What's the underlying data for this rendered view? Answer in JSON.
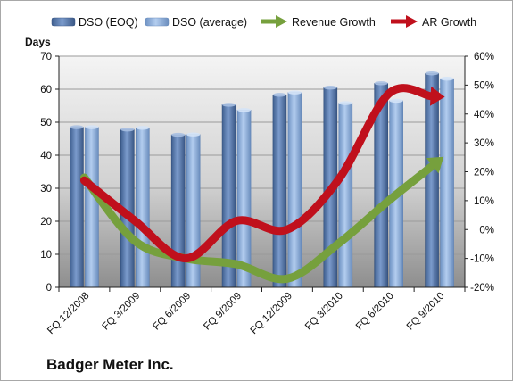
{
  "chart_data": {
    "type": "bar",
    "title": "Badger Meter Inc.",
    "categories": [
      "FQ 12/2008",
      "FQ 3/2009",
      "FQ 6/2009",
      "FQ 9/2009",
      "FQ 12/2009",
      "FQ 3/2010",
      "FQ 6/2010",
      "FQ 9/2010"
    ],
    "ylabel": "Days",
    "ylim": [
      0,
      70
    ],
    "yticks": [
      0,
      10,
      20,
      30,
      40,
      50,
      60,
      70
    ],
    "y2lim": [
      -20,
      60
    ],
    "y2ticks": [
      -20,
      -10,
      0,
      10,
      20,
      30,
      40,
      50,
      60
    ],
    "y2_unit": "%",
    "grid": true,
    "legend_position": "top",
    "series": [
      {
        "name": "DSO (EOQ)",
        "type": "bar",
        "axis": "left",
        "color": "#5a7baa",
        "values": [
          48.5,
          47.8,
          46.2,
          55.3,
          58.3,
          60.5,
          61.8,
          64.8
        ]
      },
      {
        "name": "DSO (average)",
        "type": "bar",
        "axis": "left",
        "color": "#8fb2df",
        "values": [
          48.5,
          48.3,
          46.3,
          53.7,
          59.0,
          55.8,
          56.5,
          63.2
        ]
      },
      {
        "name": "Revenue Growth",
        "type": "line",
        "axis": "right",
        "color": "#76a03d",
        "values": [
          18,
          -4,
          -10,
          -12,
          -17,
          -5,
          10,
          24
        ]
      },
      {
        "name": "AR Growth",
        "type": "line",
        "axis": "right",
        "color": "#c0101c",
        "values": [
          17,
          3,
          -10,
          3,
          0,
          17,
          47,
          46
        ]
      }
    ],
    "colors": {
      "plot_bg_top": "#f4f4f4",
      "plot_bg_bottom": "#8e8e8e"
    }
  }
}
